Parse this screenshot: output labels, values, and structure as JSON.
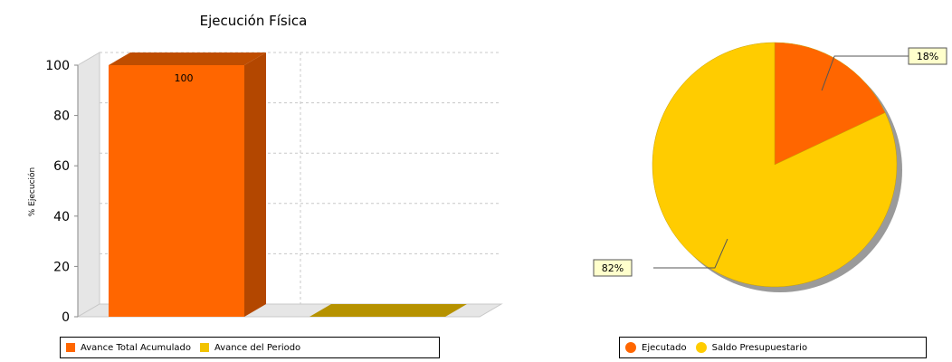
{
  "chart_data": [
    {
      "type": "bar",
      "title": "Ejecución Física",
      "xlabel": "",
      "ylabel": "% Ejecución",
      "ylim": [
        0,
        100
      ],
      "yticks": [
        0,
        20,
        40,
        60,
        80,
        100
      ],
      "categories": [
        "Avance Total Acumulado",
        "Avance del Periodo"
      ],
      "values": [
        100,
        0
      ],
      "data_labels": [
        "100",
        ""
      ],
      "colors": [
        "#ff6600",
        "#f2c300"
      ],
      "grid": true,
      "style": "3d",
      "legend": {
        "placement": "bottom",
        "entries": [
          "Avance Total Acumulado",
          "Avance del Periodo"
        ]
      }
    },
    {
      "type": "pie",
      "title": "",
      "categories": [
        "Ejecutado",
        "Saldo Presupuestario"
      ],
      "values": [
        18,
        82
      ],
      "data_labels": [
        "18%",
        "82%"
      ],
      "colors": [
        "#ff6600",
        "#ffcc00"
      ],
      "legend": {
        "placement": "bottom",
        "entries": [
          "Ejecutado",
          "Saldo Presupuestario"
        ]
      }
    }
  ]
}
